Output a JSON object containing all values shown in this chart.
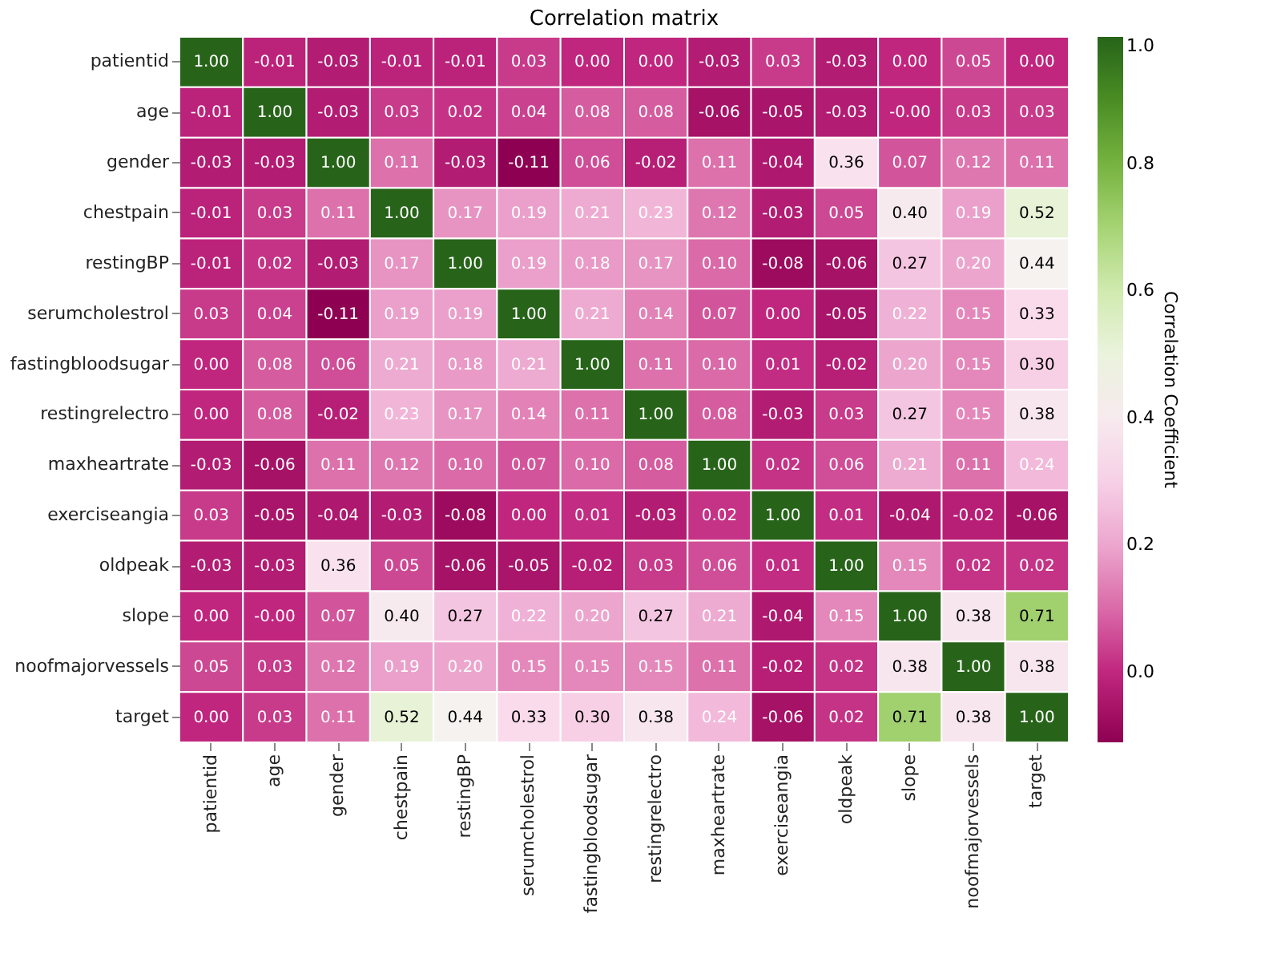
{
  "chart_data": {
    "type": "heatmap",
    "title": "Correlation matrix",
    "clabel": "Correlation Coefficient",
    "categories": [
      "patientid",
      "age",
      "gender",
      "chestpain",
      "restingBP",
      "serumcholestrol",
      "fastingbloodsugar",
      "restingrelectro",
      "maxheartrate",
      "exerciseangia",
      "oldpeak",
      "slope",
      "noofmajorvessels",
      "target"
    ],
    "y_categories": [
      "patientid",
      "age",
      "gender",
      "chestpain",
      "restingBP",
      "serumcholestrol",
      "fastingbloodsugar",
      "restingrelectro",
      "maxheartrate",
      "exerciseangia",
      "oldpeak",
      "slope",
      "noofmajorvessels",
      "target"
    ],
    "cells": [
      [
        1.0,
        -0.01,
        -0.03,
        -0.01,
        -0.01,
        0.03,
        0.0,
        0.0,
        -0.03,
        0.03,
        -0.03,
        0.0,
        0.05,
        0.0
      ],
      [
        -0.01,
        1.0,
        -0.03,
        0.03,
        0.02,
        0.04,
        0.08,
        0.08,
        -0.06,
        -0.05,
        -0.03,
        -0.0,
        0.03,
        0.03
      ],
      [
        -0.03,
        -0.03,
        1.0,
        0.11,
        -0.03,
        -0.11,
        0.06,
        -0.02,
        0.11,
        -0.04,
        0.36,
        0.07,
        0.12,
        0.11
      ],
      [
        -0.01,
        0.03,
        0.11,
        1.0,
        0.17,
        0.19,
        0.21,
        0.23,
        0.12,
        -0.03,
        0.05,
        0.4,
        0.19,
        0.52
      ],
      [
        -0.01,
        0.02,
        -0.03,
        0.17,
        1.0,
        0.19,
        0.18,
        0.17,
        0.1,
        -0.08,
        -0.06,
        0.27,
        0.2,
        0.44
      ],
      [
        0.03,
        0.04,
        -0.11,
        0.19,
        0.19,
        1.0,
        0.21,
        0.14,
        0.07,
        0.0,
        -0.05,
        0.22,
        0.15,
        0.33
      ],
      [
        0.0,
        0.08,
        0.06,
        0.21,
        0.18,
        0.21,
        1.0,
        0.11,
        0.1,
        0.01,
        -0.02,
        0.2,
        0.15,
        0.3
      ],
      [
        0.0,
        0.08,
        -0.02,
        0.23,
        0.17,
        0.14,
        0.11,
        1.0,
        0.08,
        -0.03,
        0.03,
        0.27,
        0.15,
        0.38
      ],
      [
        -0.03,
        -0.06,
        0.11,
        0.12,
        0.1,
        0.07,
        0.1,
        0.08,
        1.0,
        0.02,
        0.06,
        0.21,
        0.11,
        0.24
      ],
      [
        0.03,
        -0.05,
        -0.04,
        -0.03,
        -0.08,
        0.0,
        0.01,
        -0.03,
        0.02,
        1.0,
        0.01,
        -0.04,
        -0.02,
        -0.06
      ],
      [
        -0.03,
        -0.03,
        0.36,
        0.05,
        -0.06,
        -0.05,
        -0.02,
        0.03,
        0.06,
        0.01,
        1.0,
        0.15,
        0.02,
        0.02
      ],
      [
        0.0,
        -0.0,
        0.07,
        0.4,
        0.27,
        0.22,
        0.2,
        0.27,
        0.21,
        -0.04,
        0.15,
        1.0,
        0.38,
        0.71
      ],
      [
        0.05,
        0.03,
        0.12,
        0.19,
        0.2,
        0.15,
        0.15,
        0.15,
        0.11,
        -0.02,
        0.02,
        0.38,
        1.0,
        0.38
      ],
      [
        0.0,
        0.03,
        0.11,
        0.52,
        0.44,
        0.33,
        0.3,
        0.38,
        0.24,
        -0.06,
        0.02,
        0.71,
        0.38,
        1.0
      ]
    ],
    "clim": [
      -0.11,
      1.0
    ],
    "cticks": [
      {
        "value": 0.0,
        "label": "0.0"
      },
      {
        "value": 0.2,
        "label": "0.2"
      },
      {
        "value": 0.4,
        "label": "0.4"
      },
      {
        "value": 0.6,
        "label": "0.6"
      },
      {
        "value": 0.8,
        "label": "0.8"
      },
      {
        "value": 1.0,
        "label": "1.0"
      }
    ],
    "cell_labels": [
      [
        "1.00",
        "-0.01",
        "-0.03",
        "-0.01",
        "-0.01",
        "0.03",
        "0.00",
        "0.00",
        "-0.03",
        "0.03",
        "-0.03",
        "0.00",
        "0.05",
        "0.00"
      ],
      [
        "-0.01",
        "1.00",
        "-0.03",
        "0.03",
        "0.02",
        "0.04",
        "0.08",
        "0.08",
        "-0.06",
        "-0.05",
        "-0.03",
        "-0.00",
        "0.03",
        "0.03"
      ],
      [
        "-0.03",
        "-0.03",
        "1.00",
        "0.11",
        "-0.03",
        "-0.11",
        "0.06",
        "-0.02",
        "0.11",
        "-0.04",
        "0.36",
        "0.07",
        "0.12",
        "0.11"
      ],
      [
        "-0.01",
        "0.03",
        "0.11",
        "1.00",
        "0.17",
        "0.19",
        "0.21",
        "0.23",
        "0.12",
        "-0.03",
        "0.05",
        "0.40",
        "0.19",
        "0.52"
      ],
      [
        "-0.01",
        "0.02",
        "-0.03",
        "0.17",
        "1.00",
        "0.19",
        "0.18",
        "0.17",
        "0.10",
        "-0.08",
        "-0.06",
        "0.27",
        "0.20",
        "0.44"
      ],
      [
        "0.03",
        "0.04",
        "-0.11",
        "0.19",
        "0.19",
        "1.00",
        "0.21",
        "0.14",
        "0.07",
        "0.00",
        "-0.05",
        "0.22",
        "0.15",
        "0.33"
      ],
      [
        "0.00",
        "0.08",
        "0.06",
        "0.21",
        "0.18",
        "0.21",
        "1.00",
        "0.11",
        "0.10",
        "0.01",
        "-0.02",
        "0.20",
        "0.15",
        "0.30"
      ],
      [
        "0.00",
        "0.08",
        "-0.02",
        "0.23",
        "0.17",
        "0.14",
        "0.11",
        "1.00",
        "0.08",
        "-0.03",
        "0.03",
        "0.27",
        "0.15",
        "0.38"
      ],
      [
        "-0.03",
        "-0.06",
        "0.11",
        "0.12",
        "0.10",
        "0.07",
        "0.10",
        "0.08",
        "1.00",
        "0.02",
        "0.06",
        "0.21",
        "0.11",
        "0.24"
      ],
      [
        "0.03",
        "-0.05",
        "-0.04",
        "-0.03",
        "-0.08",
        "0.00",
        "0.01",
        "-0.03",
        "0.02",
        "1.00",
        "0.01",
        "-0.04",
        "-0.02",
        "-0.06"
      ],
      [
        "-0.03",
        "-0.03",
        "0.36",
        "0.05",
        "-0.06",
        "-0.05",
        "-0.02",
        "0.03",
        "0.06",
        "0.01",
        "1.00",
        "0.15",
        "0.02",
        "0.02"
      ],
      [
        "0.00",
        "-0.00",
        "0.07",
        "0.40",
        "0.27",
        "0.22",
        "0.20",
        "0.27",
        "0.21",
        "-0.04",
        "0.15",
        "1.00",
        "0.38",
        "0.71"
      ],
      [
        "0.05",
        "0.03",
        "0.12",
        "0.19",
        "0.20",
        "0.15",
        "0.15",
        "0.15",
        "0.11",
        "-0.02",
        "0.02",
        "0.38",
        "1.00",
        "0.38"
      ],
      [
        "0.00",
        "0.03",
        "0.11",
        "0.52",
        "0.44",
        "0.33",
        "0.30",
        "0.38",
        "0.24",
        "-0.06",
        "0.02",
        "0.71",
        "0.38",
        "1.00"
      ]
    ],
    "data_labels": true,
    "grid": false
  }
}
